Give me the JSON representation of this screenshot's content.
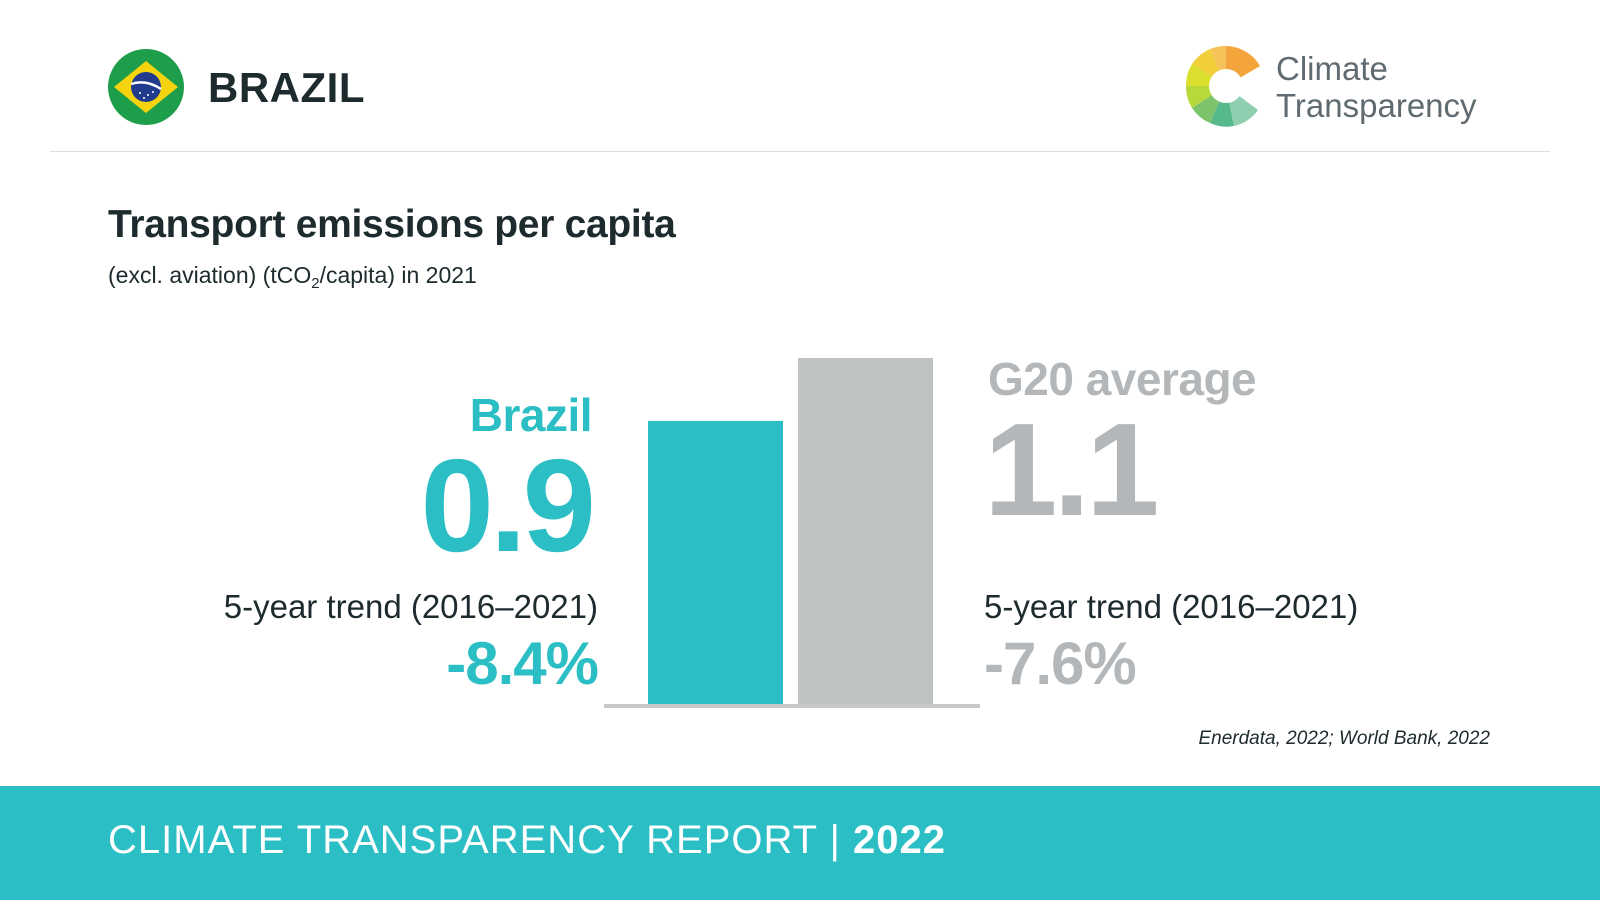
{
  "header": {
    "country": "BRAZIL",
    "logo_line1": "Climate",
    "logo_line2": "Transparency"
  },
  "title": "Transport emissions per capita",
  "subtitle": {
    "before": "(excl. aviation) (tCO",
    "sub": "2",
    "after": "/capita) in 2021"
  },
  "country_block": {
    "name": "Brazil",
    "value": "0.9",
    "trend_label": "5-year trend (2016–2021)",
    "trend_value": "-8.4%"
  },
  "g20_block": {
    "name": "G20 average",
    "value": "1.1",
    "trend_label": "5-year trend (2016–2021)",
    "trend_value": "-7.6%"
  },
  "source": "Enerdata, 2022; World Bank, 2022",
  "footer": {
    "text": "CLIMATE TRANSPARENCY REPORT | ",
    "year": "2022"
  },
  "colors": {
    "country": "#2bbec4",
    "g20": "#bfc2c3",
    "axis": "#c6c8c9"
  },
  "chart_data": {
    "type": "bar",
    "categories": [
      "Brazil",
      "G20 average"
    ],
    "values": [
      0.9,
      1.1
    ],
    "title": "Transport emissions per capita",
    "ylabel": "",
    "ylim": [
      0,
      1.1
    ],
    "grid": false
  }
}
